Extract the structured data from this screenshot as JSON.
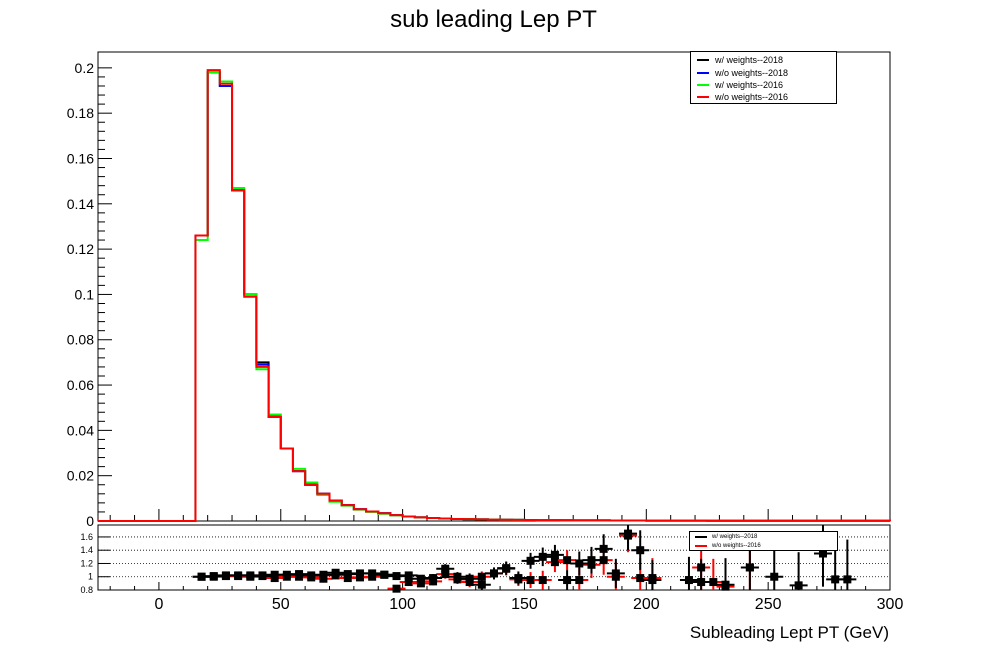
{
  "chart_data": [
    {
      "type": "line",
      "title": "sub leading Lep PT",
      "xlabel": "",
      "ylabel": "",
      "xlim": [
        -25,
        300
      ],
      "ylim": [
        0,
        0.207
      ],
      "y_ticks": [
        0,
        0.02,
        0.04,
        0.06,
        0.08,
        0.1,
        0.12,
        0.14,
        0.16,
        0.18,
        0.2
      ],
      "y_tick_labels": [
        "0",
        "0.02",
        "0.04",
        "0.06",
        "0.08",
        "0.1",
        "0.12",
        "0.14",
        "0.16",
        "0.18",
        "0.2"
      ],
      "grid": false,
      "legend_position": "top-right",
      "bin_edges": [
        -25,
        -20,
        -15,
        -10,
        -5,
        0,
        5,
        10,
        15,
        20,
        25,
        30,
        35,
        40,
        45,
        50,
        55,
        60,
        65,
        70,
        75,
        80,
        85,
        90,
        95,
        100,
        105,
        110,
        115,
        120,
        125,
        130,
        135,
        140,
        145,
        150,
        155,
        160,
        165,
        170,
        175,
        180,
        185,
        190,
        195,
        200,
        205,
        210,
        215,
        220,
        225,
        230,
        235,
        240,
        245,
        250,
        255,
        260,
        265,
        270,
        275,
        280,
        285,
        290,
        295,
        300
      ],
      "series": [
        {
          "name": "w/ weights--2018",
          "color": "#000000",
          "values": [
            0,
            0,
            0,
            0,
            0,
            0,
            0,
            0,
            0.126,
            0.198,
            0.192,
            0.146,
            0.1,
            0.07,
            0.046,
            0.032,
            0.022,
            0.016,
            0.012,
            0.009,
            0.007,
            0.0052,
            0.0042,
            0.0034,
            0.0026,
            0.002,
            0.0016,
            0.0013,
            0.0011,
            0.0009,
            0.0008,
            0.0007,
            0.0006,
            0.00055,
            0.0005,
            0.00045,
            0.0004,
            0.00036,
            0.00032,
            0.0003,
            0.00028,
            0.00026,
            0.00024,
            0.00022,
            0.0002,
            0.00018,
            0.00017,
            0.00016,
            0.00015,
            0.00014,
            0.00013,
            0.00012,
            0.00011,
            0.0001,
            0.0001,
            0.0001,
            0.0001,
            0.0001,
            0.0001,
            0.0001,
            0.0001,
            0.0001,
            0.0001,
            0.0001,
            0.0001
          ]
        },
        {
          "name": "w/o weights--2018",
          "color": "#0000ff",
          "values": [
            0,
            0,
            0,
            0,
            0,
            0,
            0,
            0,
            0.126,
            0.198,
            0.192,
            0.146,
            0.1,
            0.069,
            0.046,
            0.032,
            0.022,
            0.016,
            0.012,
            0.009,
            0.007,
            0.0052,
            0.0042,
            0.0034,
            0.0026,
            0.002,
            0.0016,
            0.0013,
            0.0011,
            0.0009,
            0.0008,
            0.0007,
            0.0006,
            0.00055,
            0.0005,
            0.00045,
            0.0004,
            0.00036,
            0.00032,
            0.0003,
            0.00028,
            0.00026,
            0.00024,
            0.00022,
            0.0002,
            0.00018,
            0.00017,
            0.00016,
            0.00015,
            0.00014,
            0.00013,
            0.00012,
            0.00011,
            0.0001,
            0.0001,
            0.0001,
            0.0001,
            0.0001,
            0.0001,
            0.0001,
            0.0001,
            0.0001,
            0.0001,
            0.0001,
            0.0001
          ]
        },
        {
          "name": "w/ weights--2016",
          "color": "#00ff00",
          "values": [
            0,
            0,
            0,
            0,
            0,
            0,
            0,
            0,
            0.124,
            0.198,
            0.194,
            0.147,
            0.1,
            0.067,
            0.047,
            0.032,
            0.023,
            0.017,
            0.0115,
            0.0085,
            0.0068,
            0.005,
            0.004,
            0.0032,
            0.0025,
            0.002,
            0.0016,
            0.0013,
            0.0011,
            0.0009,
            0.0008,
            0.0007,
            0.0006,
            0.00055,
            0.0005,
            0.00045,
            0.0004,
            0.00036,
            0.00032,
            0.0003,
            0.00028,
            0.00026,
            0.00024,
            0.00022,
            0.0002,
            0.00018,
            0.00017,
            0.00016,
            0.00015,
            0.00014,
            0.00013,
            0.00012,
            0.00011,
            0.0001,
            0.0001,
            0.0001,
            0.0001,
            0.0001,
            0.0001,
            0.0001,
            0.0001,
            0.0001,
            0.0001,
            0.0001,
            0.0001
          ]
        },
        {
          "name": "w/o weights--2016",
          "color": "#ff0000",
          "values": [
            0,
            0,
            0,
            0,
            0,
            0,
            0,
            0,
            0.126,
            0.199,
            0.193,
            0.146,
            0.099,
            0.068,
            0.046,
            0.032,
            0.022,
            0.016,
            0.012,
            0.009,
            0.007,
            0.0052,
            0.0042,
            0.0034,
            0.0026,
            0.002,
            0.0016,
            0.0013,
            0.0011,
            0.0009,
            0.0008,
            0.0007,
            0.0006,
            0.00055,
            0.0005,
            0.00045,
            0.0004,
            0.00036,
            0.00032,
            0.0003,
            0.00028,
            0.00026,
            0.00024,
            0.00022,
            0.0002,
            0.00018,
            0.00017,
            0.00016,
            0.00015,
            0.00014,
            0.00013,
            0.00012,
            0.00011,
            0.0001,
            0.0001,
            0.0001,
            0.0001,
            0.0001,
            0.0001,
            0.0001,
            0.0001,
            0.0001,
            0.0001,
            0.0001,
            0.0001
          ]
        }
      ]
    },
    {
      "type": "scatter",
      "title": "",
      "xlabel": "Subleading Lept PT (GeV)",
      "ylabel": "",
      "xlim": [
        -25,
        300
      ],
      "ylim": [
        0.8,
        1.78
      ],
      "x_ticks": [
        0,
        50,
        100,
        150,
        200,
        250,
        300
      ],
      "x_tick_labels": [
        "0",
        "50",
        "100",
        "150",
        "200",
        "250",
        "300"
      ],
      "y_ticks": [
        0.8,
        1,
        1.2,
        1.4,
        1.6
      ],
      "y_tick_labels": [
        "0.8",
        "1",
        "1.2",
        "1.4",
        "1.6"
      ],
      "grid": "horizontal dotted",
      "legend_position": "top-right",
      "series": [
        {
          "name": "w/ weights--2018",
          "color": "#000000",
          "x": [
            17.5,
            22.5,
            27.5,
            32.5,
            37.5,
            42.5,
            47.5,
            52.5,
            57.5,
            62.5,
            67.5,
            72.5,
            77.5,
            82.5,
            87.5,
            92.5,
            97.5,
            102.5,
            107.5,
            112.5,
            117.5,
            122.5,
            127.5,
            132.5,
            137.5,
            142.5,
            147.5,
            152.5,
            157.5,
            162.5,
            167.5,
            172.5,
            177.5,
            182.5,
            187.5,
            192.5,
            197.5,
            202.5,
            217.5,
            222.5,
            232.5,
            242.5,
            252.5,
            262.5,
            272.5,
            277.5,
            282.5
          ],
          "y": [
            1.0,
            1.01,
            1.02,
            1.02,
            1.02,
            1.01,
            1.03,
            1.03,
            1.04,
            1.02,
            1.03,
            1.06,
            1.04,
            1.05,
            1.05,
            1.03,
            1.01,
            1.02,
            0.97,
            0.98,
            1.12,
            1.0,
            0.97,
            0.88,
            1.05,
            1.13,
            0.98,
            1.24,
            1.3,
            1.33,
            0.95,
            1.2,
            1.25,
            1.42,
            1.05,
            1.65,
            1.4,
            0.95,
            0.95,
            0.92,
            0.88,
            1.14,
            1.0,
            0.87,
            1.35,
            0.96,
            0.96
          ],
          "err": [
            0.01,
            0.01,
            0.01,
            0.01,
            0.01,
            0.01,
            0.01,
            0.01,
            0.02,
            0.02,
            0.02,
            0.03,
            0.03,
            0.03,
            0.04,
            0.04,
            0.04,
            0.05,
            0.05,
            0.06,
            0.07,
            0.07,
            0.08,
            0.08,
            0.09,
            0.1,
            0.1,
            0.12,
            0.14,
            0.15,
            0.15,
            0.18,
            0.2,
            0.22,
            0.22,
            0.25,
            0.3,
            0.3,
            0.35,
            0.35,
            0.4,
            0.45,
            0.45,
            0.5,
            0.5,
            0.55,
            0.6
          ]
        },
        {
          "name": "w/o weights--2016",
          "color": "#ff0000",
          "x": [
            17.5,
            22.5,
            27.5,
            32.5,
            37.5,
            42.5,
            47.5,
            52.5,
            57.5,
            62.5,
            67.5,
            72.5,
            77.5,
            82.5,
            87.5,
            92.5,
            97.5,
            102.5,
            107.5,
            112.5,
            117.5,
            122.5,
            127.5,
            132.5,
            137.5,
            142.5,
            147.5,
            152.5,
            157.5,
            162.5,
            167.5,
            172.5,
            177.5,
            182.5,
            187.5,
            192.5,
            197.5,
            202.5,
            222.5,
            227.5,
            232.5,
            242.5
          ],
          "y": [
            1.0,
            1.0,
            1.01,
            1.01,
            1.0,
            1.02,
            0.98,
            1.0,
            1.0,
            0.99,
            0.97,
            1.02,
            0.98,
            0.99,
            1.0,
            1.03,
            0.82,
            0.92,
            0.9,
            0.93,
            1.04,
            0.96,
            0.92,
            1.0,
            1.05,
            1.12,
            0.96,
            0.95,
            0.95,
            1.22,
            1.25,
            0.95,
            1.18,
            1.25,
            1.0,
            1.62,
            0.98,
            0.98,
            1.14,
            0.92,
            0.85,
            1.14
          ],
          "err": [
            0.01,
            0.01,
            0.01,
            0.01,
            0.01,
            0.01,
            0.01,
            0.01,
            0.02,
            0.02,
            0.02,
            0.03,
            0.03,
            0.03,
            0.04,
            0.04,
            0.04,
            0.05,
            0.05,
            0.06,
            0.07,
            0.07,
            0.08,
            0.08,
            0.09,
            0.1,
            0.1,
            0.12,
            0.14,
            0.15,
            0.15,
            0.18,
            0.2,
            0.22,
            0.22,
            0.25,
            0.3,
            0.3,
            0.35,
            0.35,
            0.4,
            0.45
          ]
        }
      ]
    }
  ]
}
